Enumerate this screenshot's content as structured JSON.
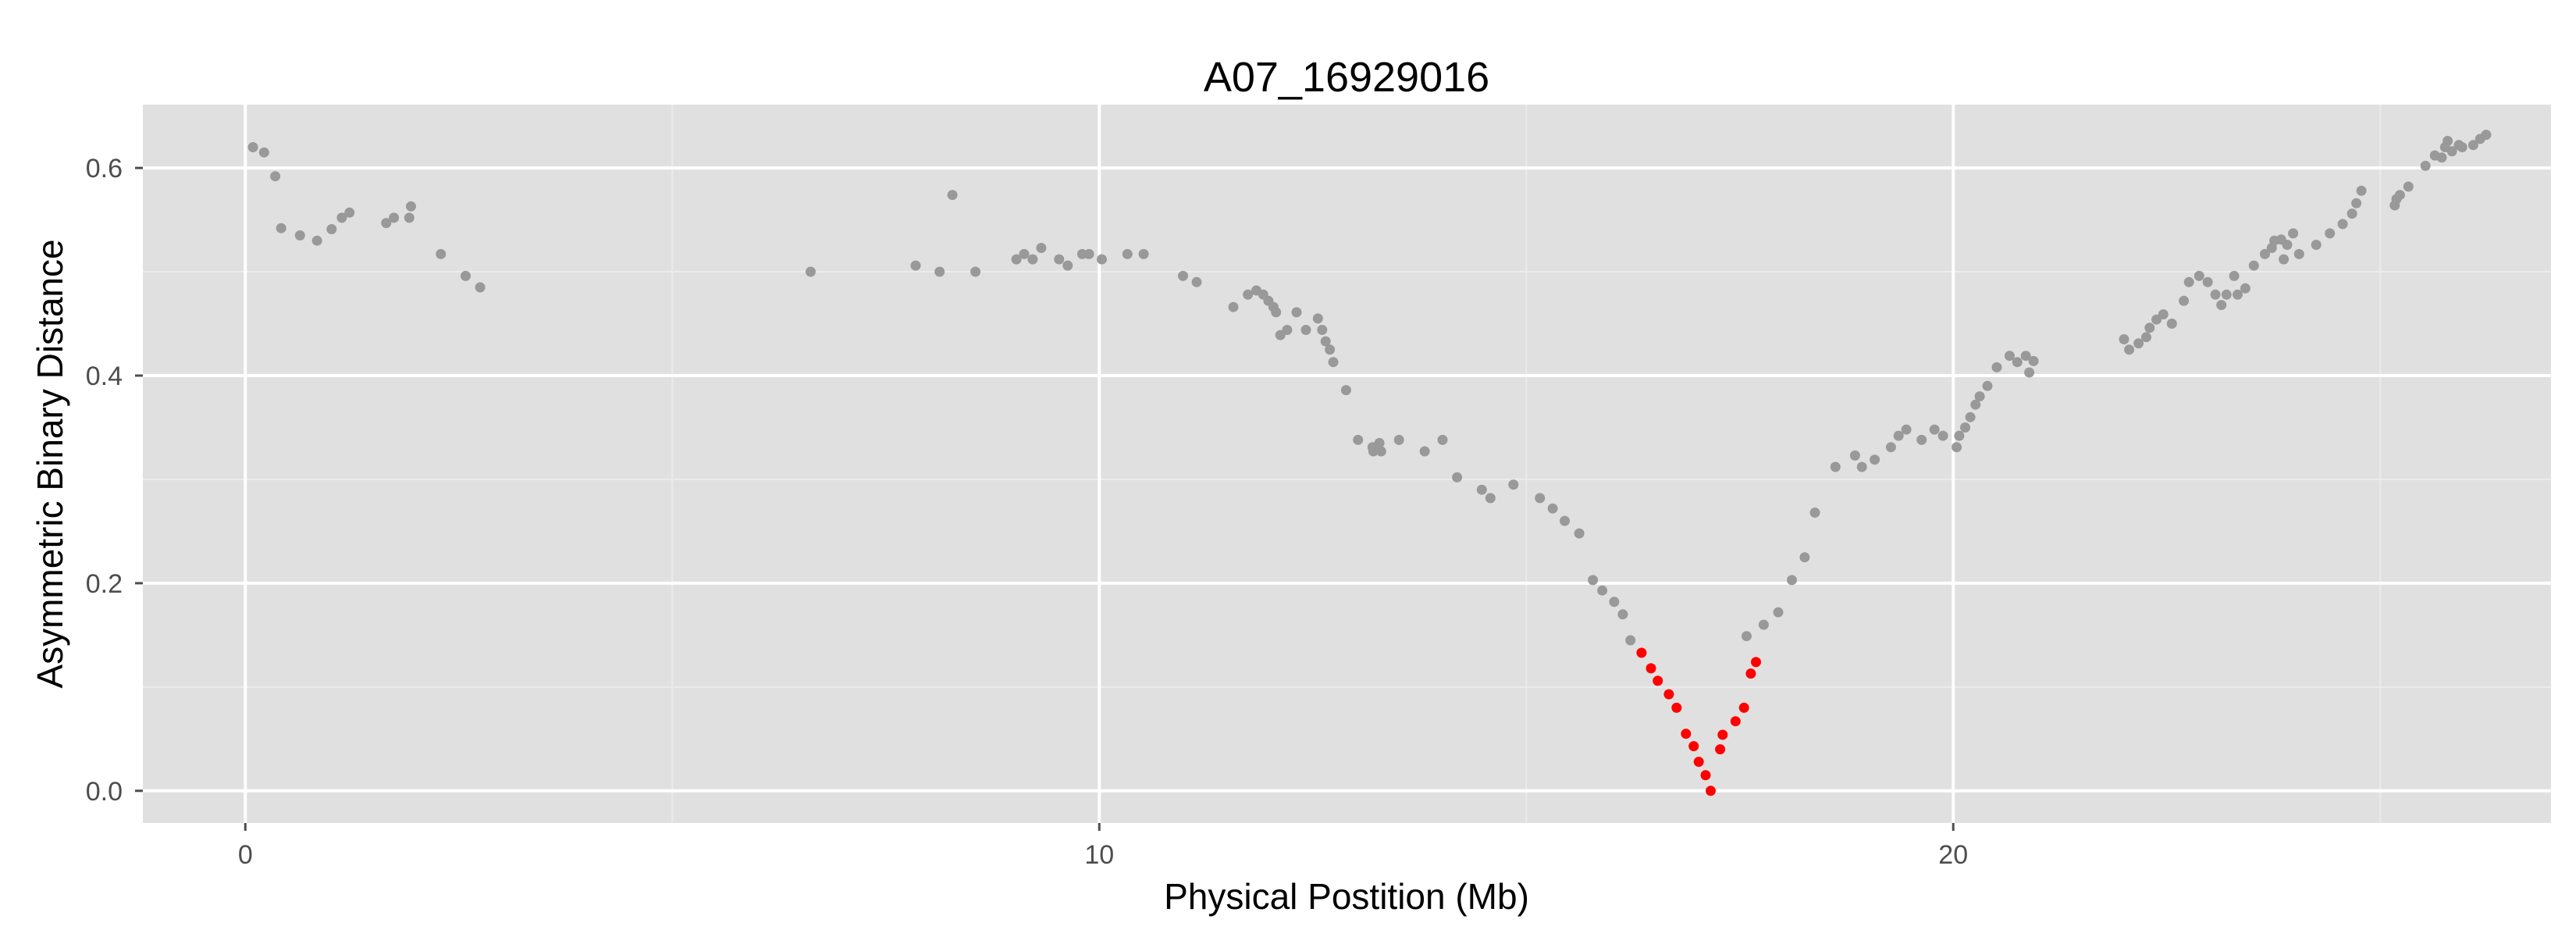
{
  "chart_data": {
    "type": "scatter",
    "title": "A07_16929016",
    "xlabel": "Physical Postition (Mb)",
    "ylabel": "Asymmetric Binary Distance",
    "xlim": [
      -1.2,
      27.0
    ],
    "ylim": [
      -0.031,
      0.661
    ],
    "x_ticks": [
      0,
      10,
      20
    ],
    "x_tick_labels": [
      "0",
      "10",
      "20"
    ],
    "y_ticks": [
      0.0,
      0.2,
      0.4,
      0.6
    ],
    "y_tick_labels": [
      "0.0",
      "0.2",
      "0.4",
      "0.6"
    ],
    "grid": true,
    "legend": "none",
    "colors": {
      "panel": "#e0e0e0",
      "grid_major": "#ffffff",
      "grid_minor": "#ebebeb",
      "tick": "#4d4d4d",
      "background_points": "#999999",
      "highlight_points": "#ff0000"
    },
    "series": [
      {
        "color": "#999999",
        "points": [
          [
            0.09,
            0.62
          ],
          [
            0.22,
            0.615
          ],
          [
            0.35,
            0.592
          ],
          [
            0.42,
            0.542
          ],
          [
            0.64,
            0.535
          ],
          [
            0.84,
            0.53
          ],
          [
            1.01,
            0.541
          ],
          [
            1.13,
            0.552
          ],
          [
            1.22,
            0.557
          ],
          [
            1.65,
            0.547
          ],
          [
            1.74,
            0.552
          ],
          [
            1.92,
            0.552
          ],
          [
            1.94,
            0.563
          ],
          [
            2.29,
            0.517
          ],
          [
            2.58,
            0.496
          ],
          [
            2.75,
            0.485
          ],
          [
            6.62,
            0.5
          ],
          [
            7.85,
            0.506
          ],
          [
            8.13,
            0.5
          ],
          [
            8.28,
            0.574
          ],
          [
            8.55,
            0.5
          ],
          [
            9.03,
            0.512
          ],
          [
            9.12,
            0.517
          ],
          [
            9.22,
            0.512
          ],
          [
            9.32,
            0.523
          ],
          [
            9.53,
            0.512
          ],
          [
            9.63,
            0.506
          ],
          [
            9.8,
            0.517
          ],
          [
            9.88,
            0.517
          ],
          [
            10.03,
            0.512
          ],
          [
            10.33,
            0.517
          ],
          [
            10.52,
            0.517
          ],
          [
            10.98,
            0.496
          ],
          [
            11.14,
            0.49
          ],
          [
            11.57,
            0.466
          ],
          [
            11.74,
            0.478
          ],
          [
            11.84,
            0.482
          ],
          [
            11.92,
            0.478
          ],
          [
            11.98,
            0.472
          ],
          [
            12.04,
            0.466
          ],
          [
            12.07,
            0.461
          ],
          [
            12.12,
            0.439
          ],
          [
            12.2,
            0.444
          ],
          [
            12.31,
            0.461
          ],
          [
            12.42,
            0.444
          ],
          [
            12.56,
            0.455
          ],
          [
            12.61,
            0.444
          ],
          [
            12.65,
            0.433
          ],
          [
            12.7,
            0.425
          ],
          [
            12.74,
            0.413
          ],
          [
            12.89,
            0.386
          ],
          [
            13.03,
            0.338
          ],
          [
            13.2,
            0.331
          ],
          [
            13.21,
            0.327
          ],
          [
            13.28,
            0.335
          ],
          [
            13.3,
            0.327
          ],
          [
            13.51,
            0.338
          ],
          [
            13.81,
            0.327
          ],
          [
            14.02,
            0.338
          ],
          [
            14.19,
            0.302
          ],
          [
            14.48,
            0.29
          ],
          [
            14.58,
            0.282
          ],
          [
            14.85,
            0.295
          ],
          [
            15.16,
            0.282
          ],
          [
            15.31,
            0.272
          ],
          [
            15.45,
            0.26
          ],
          [
            15.62,
            0.248
          ],
          [
            15.78,
            0.203
          ],
          [
            15.89,
            0.193
          ],
          [
            16.03,
            0.182
          ],
          [
            16.13,
            0.17
          ],
          [
            16.22,
            0.145
          ],
          [
            17.58,
            0.149
          ],
          [
            17.78,
            0.16
          ],
          [
            17.95,
            0.172
          ],
          [
            18.11,
            0.203
          ],
          [
            18.26,
            0.225
          ],
          [
            18.38,
            0.268
          ],
          [
            18.62,
            0.312
          ],
          [
            18.85,
            0.323
          ],
          [
            18.93,
            0.312
          ],
          [
            19.08,
            0.319
          ],
          [
            19.27,
            0.331
          ],
          [
            19.36,
            0.342
          ],
          [
            19.45,
            0.348
          ],
          [
            19.63,
            0.338
          ],
          [
            19.78,
            0.348
          ],
          [
            19.88,
            0.342
          ],
          [
            20.04,
            0.331
          ],
          [
            20.07,
            0.342
          ],
          [
            20.14,
            0.35
          ],
          [
            20.2,
            0.36
          ],
          [
            20.26,
            0.372
          ],
          [
            20.31,
            0.38
          ],
          [
            20.4,
            0.39
          ],
          [
            20.51,
            0.408
          ],
          [
            20.66,
            0.419
          ],
          [
            20.75,
            0.413
          ],
          [
            20.85,
            0.419
          ],
          [
            20.89,
            0.403
          ],
          [
            20.94,
            0.414
          ],
          [
            22.0,
            0.435
          ],
          [
            22.06,
            0.425
          ],
          [
            22.17,
            0.431
          ],
          [
            22.26,
            0.437
          ],
          [
            22.3,
            0.446
          ],
          [
            22.38,
            0.454
          ],
          [
            22.46,
            0.459
          ],
          [
            22.56,
            0.45
          ],
          [
            22.7,
            0.472
          ],
          [
            22.76,
            0.49
          ],
          [
            22.88,
            0.496
          ],
          [
            22.98,
            0.49
          ],
          [
            23.07,
            0.478
          ],
          [
            23.14,
            0.468
          ],
          [
            23.2,
            0.478
          ],
          [
            23.29,
            0.496
          ],
          [
            23.33,
            0.478
          ],
          [
            23.42,
            0.484
          ],
          [
            23.52,
            0.506
          ],
          [
            23.65,
            0.517
          ],
          [
            23.73,
            0.523
          ],
          [
            23.76,
            0.53
          ],
          [
            23.84,
            0.531
          ],
          [
            23.87,
            0.512
          ],
          [
            23.91,
            0.526
          ],
          [
            23.98,
            0.537
          ],
          [
            24.05,
            0.517
          ],
          [
            24.25,
            0.526
          ],
          [
            24.41,
            0.537
          ],
          [
            24.56,
            0.546
          ],
          [
            24.67,
            0.556
          ],
          [
            24.72,
            0.566
          ],
          [
            24.78,
            0.578
          ],
          [
            25.17,
            0.564
          ],
          [
            25.19,
            0.57
          ],
          [
            25.23,
            0.574
          ],
          [
            25.33,
            0.582
          ],
          [
            25.53,
            0.602
          ],
          [
            25.64,
            0.612
          ],
          [
            25.72,
            0.61
          ],
          [
            25.76,
            0.62
          ],
          [
            25.79,
            0.626
          ],
          [
            25.84,
            0.616
          ],
          [
            25.92,
            0.622
          ],
          [
            25.96,
            0.62
          ],
          [
            26.09,
            0.622
          ],
          [
            26.17,
            0.628
          ],
          [
            26.24,
            0.632
          ]
        ]
      },
      {
        "color": "#ff0000",
        "points": [
          [
            16.35,
            0.133
          ],
          [
            16.46,
            0.118
          ],
          [
            16.54,
            0.106
          ],
          [
            16.67,
            0.093
          ],
          [
            16.76,
            0.08
          ],
          [
            16.87,
            0.055
          ],
          [
            16.96,
            0.043
          ],
          [
            17.02,
            0.028
          ],
          [
            17.1,
            0.015
          ],
          [
            17.16,
            0.0
          ],
          [
            17.27,
            0.04
          ],
          [
            17.3,
            0.054
          ],
          [
            17.45,
            0.067
          ],
          [
            17.55,
            0.08
          ],
          [
            17.63,
            0.113
          ],
          [
            17.69,
            0.124
          ]
        ]
      }
    ]
  }
}
